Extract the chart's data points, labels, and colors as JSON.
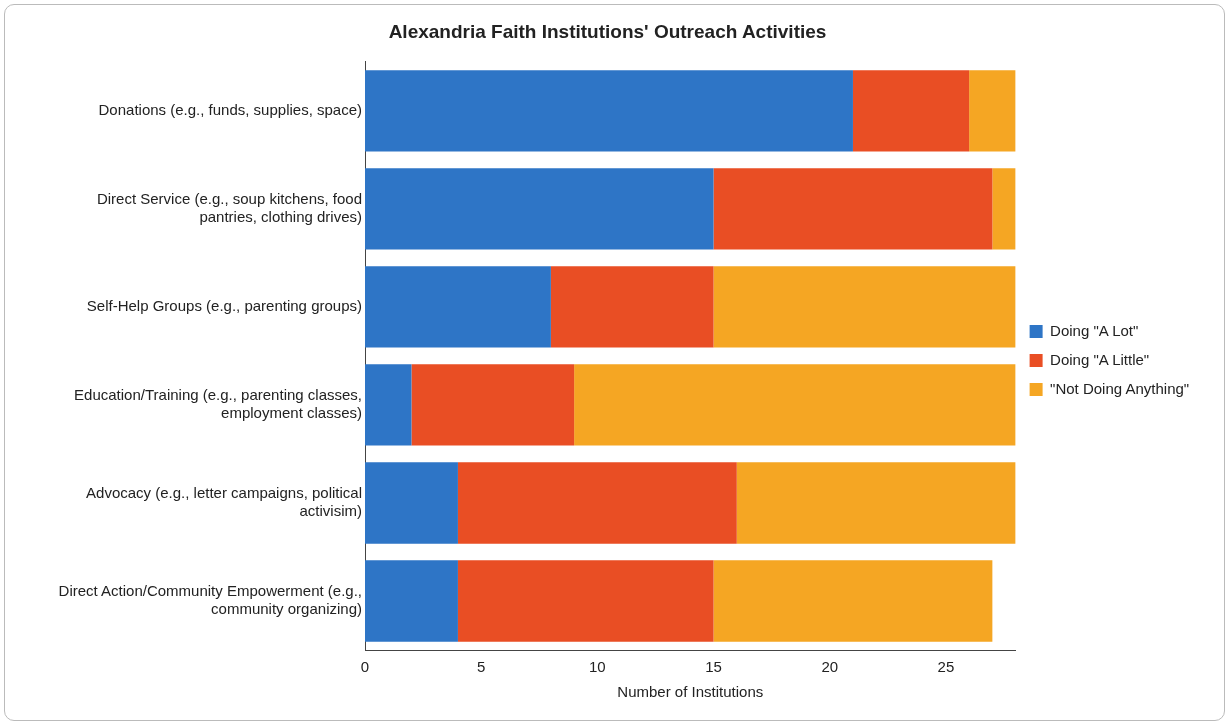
{
  "chart_data": {
    "type": "bar",
    "orientation": "horizontal",
    "stacked": true,
    "title": "Alexandria Faith Institutions' Outreach Activities",
    "xlabel": "Number of Institutions",
    "categories": [
      "Donations (e.g., funds, supplies, space)",
      "Direct Service (e.g., soup kitchens, food pantries, clothing drives)",
      "Self-Help Groups (e.g., parenting groups)",
      "Education/Training (e.g., parenting classes, employment classes)",
      "Advocacy (e.g., letter campaigns, political activisim)",
      "Direct Action/Community Empowerment (e.g., community organizing)"
    ],
    "series": [
      {
        "name": "Doing \"A Lot\"",
        "color": "#2e75c6",
        "values": [
          21,
          15,
          8,
          2,
          4,
          4
        ]
      },
      {
        "name": "Doing \"A Little\"",
        "color": "#e94e24",
        "values": [
          5,
          12,
          7,
          7,
          12,
          11
        ]
      },
      {
        "name": "\"Not Doing Anything\"",
        "color": "#f5a623",
        "values": [
          2,
          1,
          13,
          19,
          12,
          12
        ]
      }
    ],
    "xlim": [
      0,
      28
    ],
    "xticks": [
      0,
      5,
      10,
      15,
      20,
      25
    ],
    "grid": false,
    "legend": "right"
  }
}
